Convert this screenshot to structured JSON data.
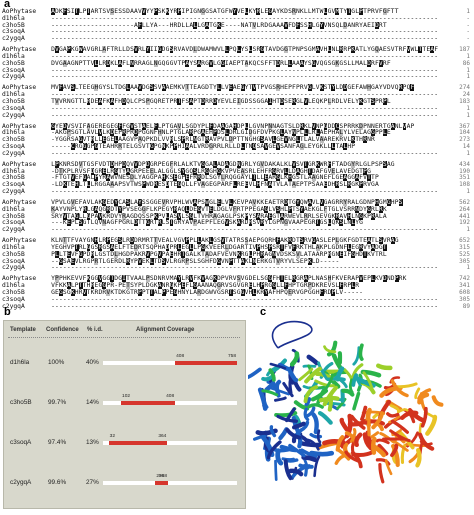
{
  "panel_a": {
    "label": "a",
    "blocks": [
      {
        "rows": [
          {
            "name": "AoPhytase",
            "seq": "ADKFSITLPTARTSVSESSDAAVVYYPSKKYRPIPIGNGGSATGFWYVELKYRLEGAYKDSRNKLLMTWLGVMTYTGLPTPRVFGFTT",
            "end": "1"
          },
          {
            "name": "d1h6la",
            "seq": "--------------------------------------------------------------------------------------------------",
            "end": "-"
          },
          {
            "name": "c3ho5B",
            "seq": "---------------------AFLLYA---HRDLLALLGATGKE----NATVLRDGAAAVFDFSSHLGYVNSQLDANRYAEIDRT",
            "end": "-"
          },
          {
            "name": "c3soqA",
            "seq": "--------------------------------------------------------------------------------------------------",
            "end": "-"
          },
          {
            "name": "c2ygqA",
            "seq": "--------------------------------------------------------------------------------------------------",
            "end": "-"
          }
        ]
      },
      {
        "rows": [
          {
            "name": "AoPhytase",
            "seq": "DVGAPKGWAVGRLAFTRLLDSVRLYIIGDGSRVAVDLDWAMWVLLPQLYSLSRGTAVDGGTPNPSGMAVHLNLRRPKATLYGQAESVTRFVWLTTEAF",
            "end": "187"
          },
          {
            "name": "d1h6la",
            "seq": "--------------------------------------------------------------------------------------------------",
            "end": "1"
          },
          {
            "name": "c3ho5B",
            "seq": "DVGAAGNPTTVLLRDKLAFLNRRAGLNGQGGVTPAYSARGVLGGIAEPTAKQCSFFTDRLLAAAYSGVQGSGKGSLLMALDRFVRF",
            "end": "86"
          },
          {
            "name": "c3soqA",
            "seq": "--------------------------------------------------------------------------------------------------",
            "end": "1"
          },
          {
            "name": "c2ygqA",
            "seq": "--------------------------------------------------------------------------------------------------",
            "end": "1"
          }
        ]
      },
      {
        "rows": [
          {
            "name": "AoPhytase",
            "seq": "MVFAVSLTEEGHGYSLTDGLAAVDGSSVAAEMKVTTEAGDTYLLVEAEGYTVTPVGSRHEPFPRVGLVKSTYLDDGEFAWHGAYVDVQRPQF",
            "end": "274"
          },
          {
            "name": "d1h6la",
            "seq": "--------------------------------------------------------------------------------------------------",
            "end": "24"
          },
          {
            "name": "c3ho5B",
            "seq": "TVVRNGTTLRDEAFKAFHDQLCPSPGQRETPRTFSAPTDRRDYEVLEIGDSSGGAIHTDSERGLVLEQKPLRDLVELYKGTSPRPL",
            "end": "183"
          },
          {
            "name": "c3soqA",
            "seq": "--------------------------------------------------------------------------------------------------",
            "end": "1"
          },
          {
            "name": "c2ygqA",
            "seq": "--------------------------------------------------------------------------------------------------",
            "end": "1"
          }
        ]
      },
      {
        "rows": [
          {
            "name": "AoPhytase",
            "seq": "GYEDVSVIFAGEREGEGFFGVSTAELFLPTGAVLSGDYPLFDAAGAHDPLLGVNPNNAGTSLDRKLVNPGDDCSPRRKDPNNERTGANLVAP",
            "end": "367"
          },
          {
            "name": "d1h6la",
            "seq": "-AKGPSGTLAVLVLKDEPRPRDPGGNFHNLPTGLARPGAEHPDSLDRLGIDGFDVPKGLAYNPLLLRLAEPHALYLVELAGGPPLE",
            "end": "104"
          },
          {
            "name": "c3ho5B",
            "seq": "-YGGRSAGVTRLLEGELAAGVPAQPKDLVVRLSPRLNGTRAVPVLDPTTNGHGSAVLGEVNGLTLALVAAREKRVLKTHRNR",
            "end": "273"
          },
          {
            "name": "c3soqA",
            "seq": "-----CRGGGPGTEAHRRTELGSVTGPGNKPPHIAALVRDGRRLRLLDLTNQSAVGEVSANFAGLEYGKLLLTALHP",
            "end": "14"
          },
          {
            "name": "c2ygqA",
            "seq": "--------------------------------------------------------------------------------------------------",
            "end": "1"
          }
        ]
      },
      {
        "rows": [
          {
            "name": "AoPhytase",
            "seq": "LPKNRSDVTGSFVDTDHPDQVVDPDGRPEGFRLALKTVGGALADAGDNGRLYGVDAKALKLVSVTGRKWRFFTADGYRLGLPSPSAG",
            "end": "434"
          },
          {
            "name": "d1h6la",
            "seq": "-DTKPLRVSFDGRELRGTYAGRPEEELALGGLSYGQSLRGGHGKVPVEASRLEHFRGRVLLDAGHTDAFGVELAVEDGTPG",
            "end": "190"
          },
          {
            "name": "c3ho5B",
            "seq": "-FTGTVEFGALPYRAWVNESDLYAGGPAHKSEGPEFRRDLSGYLRQGGAYLTLLEARGLKHGSTLAAGNEFLGEAGGAFVTTP",
            "end": "351"
          },
          {
            "name": "c3soqA",
            "seq": "-LDKTEHLTLLRGGAAAPSVTWSPWDRESDTEGQLLFVAGEGPARFLREEVLHFNATVLATAEPTPSAAEDHRSLRGKPRVGA",
            "end": "108"
          },
          {
            "name": "c2ygqA",
            "seq": "--------------------------------------------------------------------------------------------------",
            "end": "1"
          }
        ]
      },
      {
        "rows": [
          {
            "name": "AoPhytase",
            "seq": "VPVLGVEFAVLAKGEDYCASLAYSSGGEVRVPHLWVAPSWGLELVLKEVPAVKKEAETRDTGYQWAVLVGAGRRYRALGDNPHGMGHPS",
            "end": "562"
          },
          {
            "name": "d1h6la",
            "seq": "KAYVNPLYRLGAQGRDTYPVSEGGFLKPEGYRAQLDEGVTELDGLVFRTPPEGAGLVSHLPTSYAEKGLFTGLVSRRNDYGRLRK",
            "end": "264"
          },
          {
            "name": "c3ho5B",
            "seq": "SRYVTAGLLGPAVKRDVYRAGDQSSPKPVLASVLSGLTVHRAGAGLPSKPYSARAEGTARWEVLRRLSEVGKRAVHLNGKPRALA",
            "end": "441"
          },
          {
            "name": "c3soqA",
            "seq": "---KEPLSGTLQVNAGFPGRLDTTGRTRLSTGRYAVPAEPFLEGVSKARDRSVRYLGPNGVAAPEGRTGSLQKSLNLYG",
            "end": "192"
          },
          {
            "name": "c2ygqA",
            "seq": "--------------------------------------------------------------------------------------------------",
            "end": "1"
          }
        ]
      },
      {
        "rows": [
          {
            "name": "AoPhytase",
            "seq": "KLNTTFVAYGNHLRPEGSLRDDRMRTTVEALVGVPPLLAKLGSVTATRSSAEPGQRHFAKRDTSRVGASLEPLGKFGDTEATLSVRAG",
            "end": "652"
          },
          {
            "name": "d1h6la",
            "seq": "YEGHVPTRLGGSRGSAELFTEDRTSQPHADPRLEGLLPGKVEERLDGARTIVPHSPSRTFVFRKTHLAKPLGDNFLEGRVYADGT",
            "end": "315"
          },
          {
            "name": "c3ho5B",
            "seq": "PLLTEVFGPDRLGSTDLHGDPAKRVPGVPAEHRTGALKTADAFVEVNKRGLPHRAGNVDSKSVLATAARPRGNEIFGHDTKVTRL",
            "end": "525"
          },
          {
            "name": "c3soqA",
            "seq": "--GSAEVLRGPRTLGERDLRYPVEKLTDSVLRGRPSLSGHFDGVNPTTAKLNERKGTVRYVLSEPKLD-----",
            "end": "305"
          },
          {
            "name": "c2ygqA",
            "seq": "--------------------------------------------------------------------------------------------------",
            "end": "1"
          }
        ]
      },
      {
        "rows": [
          {
            "name": "AoPhytase",
            "seq": "YPPHKEVVFKGGVGGTDGITVAALPSDNRVMAYLRVFKVAGKDPVRVSVGDELSGGFHTELRGRAPLNASHFKVERAPVEPLKVDNDPRK",
            "end": "742"
          },
          {
            "name": "d1h6la",
            "seq": "VFKKALPTTHREGGPR-PETSYPLDGKANRGKPEFLGAANAQGRVSGVGRELHPRGGLLFHPTGRPDKREVSLFRPLR",
            "end": "341"
          },
          {
            "name": "c3ho5B",
            "seq": "GEGSGKHRVTKRDRVKTDKGTRPPTTALPPEGHNYLARDGWVGSRTSGGVHLKRYAFHPQERVGPGGHFRDPLV-----",
            "end": "608"
          },
          {
            "name": "c3soqA",
            "seq": "--------------------------------------------------------------------------------------------------",
            "end": "305"
          },
          {
            "name": "c2ygqA",
            "seq": "--------------------------------------------------------------------------------------------------",
            "end": "89"
          }
        ]
      }
    ]
  },
  "panel_b": {
    "label": "b",
    "headers": {
      "template": "Template",
      "confidence": "Confidence",
      "identity": "% i.d.",
      "coverage": "Alignment Coverage"
    },
    "rows": [
      {
        "template": "d1h6la",
        "confidence": "100%",
        "identity": "40%",
        "start_label": "408",
        "end_label": "758",
        "start": 408,
        "end": 758
      },
      {
        "template": "c3ho5B",
        "confidence": "99.7%",
        "identity": "14%",
        "start_label": "102",
        "end_label": "408",
        "start": 102,
        "end": 408
      },
      {
        "template": "c3soqA",
        "confidence": "97.4%",
        "identity": "13%",
        "start_label": "32",
        "end_label": "364",
        "start": 32,
        "end": 364
      },
      {
        "template": "c2ygqA",
        "confidence": "99.6%",
        "identity": "27%",
        "start_label": "296",
        "end_label": "368",
        "start": 296,
        "end": 368
      }
    ],
    "coverage_total": 758,
    "bar_color": "#d6362d"
  },
  "panel_c": {
    "label": "c",
    "colors": [
      "#1a2f8f",
      "#1f63c4",
      "#1ea6a8",
      "#2ab34a",
      "#9ccf2a",
      "#e8c326",
      "#f08a1e",
      "#d2321e"
    ]
  }
}
